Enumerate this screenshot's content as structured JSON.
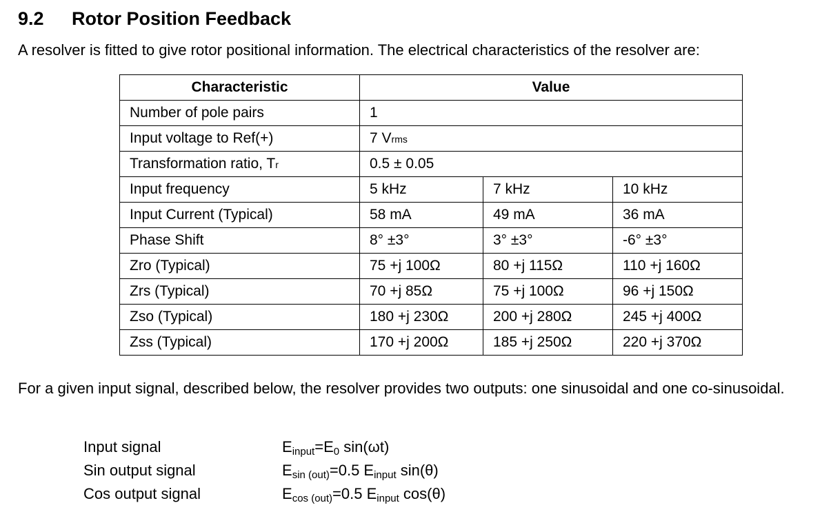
{
  "section": {
    "number": "9.2",
    "title": "Rotor Position Feedback",
    "intro": "A resolver is fitted to give rotor positional information. The electrical characteristics of the resolver are:"
  },
  "table": {
    "headers": [
      "Characteristic",
      "Value"
    ],
    "single_rows": [
      {
        "label": "Number of pole pairs",
        "value": "1"
      },
      {
        "label": "Input voltage to Ref(+)",
        "value": "7 V",
        "value_sub": "rms"
      },
      {
        "label": "Transformation ratio, T",
        "label_sub": "r",
        "value": "0.5 ± 0.05"
      }
    ],
    "multi_rows": [
      {
        "label": "Input frequency",
        "values": [
          "5 kHz",
          "7 kHz",
          "10 kHz"
        ]
      },
      {
        "label": "Input Current (Typical)",
        "values": [
          "58 mA",
          "49 mA",
          "36 mA"
        ]
      },
      {
        "label": "Phase Shift",
        "values": [
          "8° ±3°",
          "3° ±3°",
          "-6° ±3°"
        ]
      },
      {
        "label": "Zro (Typical)",
        "values": [
          "75 +j 100Ω",
          "80 +j 115Ω",
          "110 +j 160Ω"
        ]
      },
      {
        "label": "Zrs (Typical)",
        "values": [
          "70 +j 85Ω",
          "75 +j 100Ω",
          "96 +j 150Ω"
        ]
      },
      {
        "label": "Zso (Typical)",
        "values": [
          "180 +j 230Ω",
          "200 +j 280Ω",
          "245 +j 400Ω"
        ]
      },
      {
        "label": "Zss (Typical)",
        "values": [
          "170 +j 200Ω",
          "185 +j 250Ω",
          "220 +j 370Ω"
        ]
      }
    ]
  },
  "followup": "For a given input signal, described below, the resolver provides two outputs: one sinusoidal and one co-sinusoidal.",
  "signals": [
    {
      "label": "Input signal",
      "lhs": "E",
      "lhs_sub": "input",
      "mid": "=E",
      "mid_sub": "0",
      "rhs": " sin(ωt)"
    },
    {
      "label": "Sin output signal",
      "lhs": "E",
      "lhs_sub": "sin (out)",
      "mid": "=0.5 E",
      "mid_sub": "input",
      "rhs": " sin(θ)"
    },
    {
      "label": "Cos output signal",
      "lhs": "E",
      "lhs_sub": "cos (out)",
      "mid": "=0.5 E",
      "mid_sub": "input",
      "rhs": " cos(θ)"
    }
  ]
}
